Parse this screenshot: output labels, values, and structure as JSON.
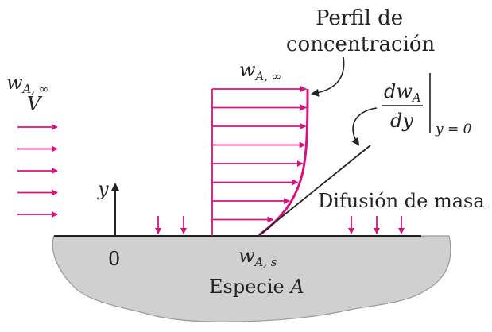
{
  "labels": {
    "profile_title_line1": "Perfil de",
    "profile_title_line2": "concentración",
    "free_stream": {
      "w": "w",
      "sub": "A, ∞",
      "v": "V"
    },
    "profile_top": {
      "w": "w",
      "sub": "A, ∞"
    },
    "gradient": {
      "numerator_d": "dw",
      "numerator_sub": "A",
      "denominator": "dy",
      "eval_at": "y = 0"
    },
    "y_axis": "y",
    "origin": "0",
    "surface_value": {
      "w": "w",
      "sub": "A, s"
    },
    "mass_diffusion": "Difusión de masa",
    "species": {
      "text": "Especie ",
      "italic": "A"
    }
  },
  "colors": {
    "accent": "#d4147c",
    "ink": "#222222",
    "surface_fill": "#d0d0d0",
    "surface_edge": "#9a9a9a"
  },
  "counts": {
    "free_stream_arrows": 5,
    "profile_arrows": 8,
    "left_diffusion_arrows": 2,
    "right_diffusion_arrows": 3
  }
}
